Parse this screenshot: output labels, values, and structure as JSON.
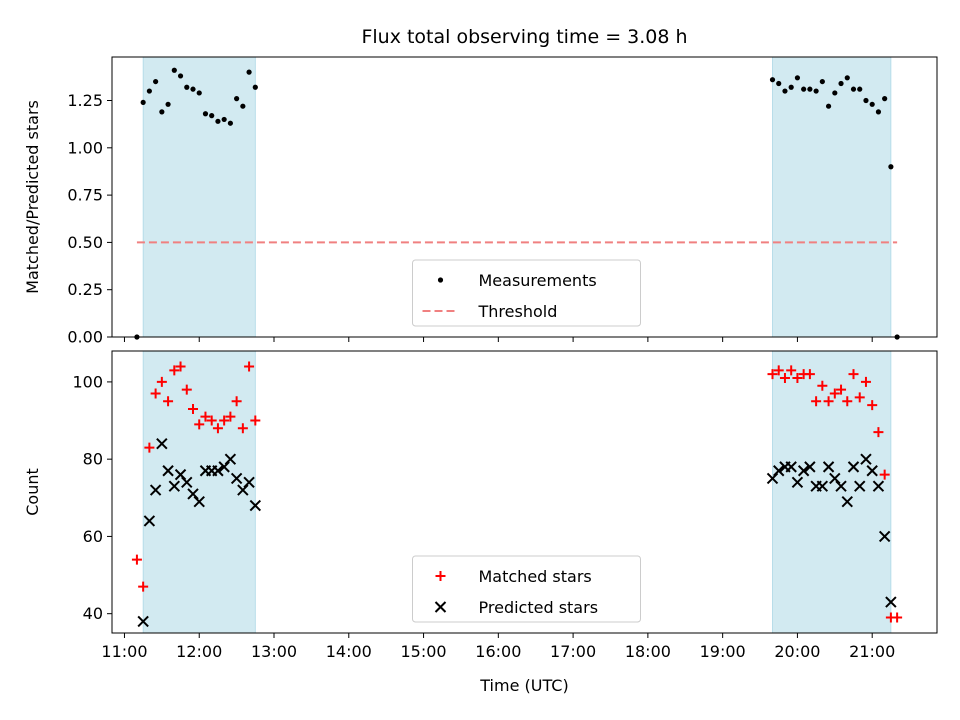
{
  "chart_data": [
    {
      "type": "scatter",
      "title": "Flux total observing time = 3.08 h",
      "xlabel": "",
      "ylabel": "Matched/Predicted stars",
      "ylim": [
        0,
        1.48
      ],
      "yticks": [
        "0.00",
        "0.25",
        "0.50",
        "0.75",
        "1.00",
        "1.25"
      ],
      "shaded_intervals": [
        [
          "11:15",
          "12:45"
        ],
        [
          "19:40",
          "21:15"
        ]
      ],
      "shade_color": "#add8e6",
      "threshold": {
        "name": "Threshold",
        "value": 0.5,
        "x_range": [
          "11:10",
          "21:20"
        ],
        "color": "#f08080",
        "style": "dashed"
      },
      "legend": {
        "placement": "lower center",
        "entries": [
          "Measurements",
          "Threshold"
        ]
      },
      "series": [
        {
          "name": "Measurements",
          "color": "#000000",
          "marker": "dot",
          "x": [
            "11:10",
            "11:15",
            "11:20",
            "11:25",
            "11:30",
            "11:35",
            "11:40",
            "11:45",
            "11:50",
            "11:55",
            "12:00",
            "12:05",
            "12:10",
            "12:15",
            "12:20",
            "12:25",
            "12:30",
            "12:35",
            "12:40",
            "12:45",
            "19:40",
            "19:45",
            "19:50",
            "19:55",
            "20:00",
            "20:05",
            "20:10",
            "20:15",
            "20:20",
            "20:25",
            "20:30",
            "20:35",
            "20:40",
            "20:45",
            "20:50",
            "20:55",
            "21:00",
            "21:05",
            "21:10",
            "21:15",
            "21:20"
          ],
          "y": [
            0.0,
            1.24,
            1.3,
            1.35,
            1.19,
            1.23,
            1.41,
            1.38,
            1.32,
            1.31,
            1.29,
            1.18,
            1.17,
            1.14,
            1.15,
            1.13,
            1.26,
            1.22,
            1.4,
            1.32,
            1.36,
            1.34,
            1.3,
            1.32,
            1.37,
            1.31,
            1.31,
            1.3,
            1.35,
            1.22,
            1.29,
            1.34,
            1.37,
            1.31,
            1.31,
            1.25,
            1.23,
            1.19,
            1.26,
            0.9,
            0.0
          ]
        }
      ]
    },
    {
      "type": "scatter",
      "title": "",
      "xlabel": "Time (UTC)",
      "ylabel": "Count",
      "ylim": [
        35,
        108
      ],
      "yticks": [
        "40",
        "60",
        "80",
        "100"
      ],
      "xticks": [
        "11:00",
        "12:00",
        "13:00",
        "14:00",
        "15:00",
        "16:00",
        "17:00",
        "18:00",
        "19:00",
        "20:00",
        "21:00"
      ],
      "shaded_intervals": [
        [
          "11:15",
          "12:45"
        ],
        [
          "19:40",
          "21:15"
        ]
      ],
      "shade_color": "#add8e6",
      "legend": {
        "placement": "lower center",
        "entries": [
          "Matched stars",
          "Predicted stars"
        ]
      },
      "series": [
        {
          "name": "Matched stars",
          "color": "#ff0000",
          "marker": "plus",
          "x": [
            "11:10",
            "11:15",
            "11:20",
            "11:25",
            "11:30",
            "11:35",
            "11:40",
            "11:45",
            "11:50",
            "11:55",
            "12:00",
            "12:05",
            "12:10",
            "12:15",
            "12:20",
            "12:25",
            "12:30",
            "12:35",
            "12:40",
            "12:45",
            "19:40",
            "19:45",
            "19:50",
            "19:55",
            "20:00",
            "20:05",
            "20:10",
            "20:15",
            "20:20",
            "20:25",
            "20:30",
            "20:35",
            "20:40",
            "20:45",
            "20:50",
            "20:55",
            "21:00",
            "21:05",
            "21:10",
            "21:15",
            "21:20"
          ],
          "y": [
            54,
            47,
            83,
            97,
            100,
            95,
            103,
            104,
            98,
            93,
            89,
            91,
            90,
            88,
            90,
            91,
            95,
            88,
            104,
            90,
            102,
            103,
            101,
            103,
            101,
            102,
            102,
            95,
            99,
            95,
            97,
            98,
            95,
            102,
            96,
            100,
            94,
            87,
            76,
            39,
            39
          ]
        },
        {
          "name": "Predicted stars",
          "color": "#000000",
          "marker": "x",
          "x": [
            "11:15",
            "11:20",
            "11:25",
            "11:30",
            "11:35",
            "11:40",
            "11:45",
            "11:50",
            "11:55",
            "12:00",
            "12:05",
            "12:10",
            "12:15",
            "12:20",
            "12:25",
            "12:30",
            "12:35",
            "12:40",
            "12:45",
            "19:40",
            "19:45",
            "19:50",
            "19:55",
            "20:00",
            "20:05",
            "20:10",
            "20:15",
            "20:20",
            "20:25",
            "20:30",
            "20:35",
            "20:40",
            "20:45",
            "20:50",
            "20:55",
            "21:00",
            "21:05",
            "21:10",
            "21:15"
          ],
          "y": [
            38,
            64,
            72,
            84,
            77,
            73,
            76,
            74,
            71,
            69,
            77,
            77,
            77,
            78,
            80,
            75,
            72,
            74,
            68,
            75,
            77,
            78,
            78,
            74,
            77,
            78,
            73,
            73,
            78,
            75,
            73,
            69,
            78,
            73,
            80,
            77,
            73,
            60,
            43
          ]
        }
      ]
    }
  ]
}
